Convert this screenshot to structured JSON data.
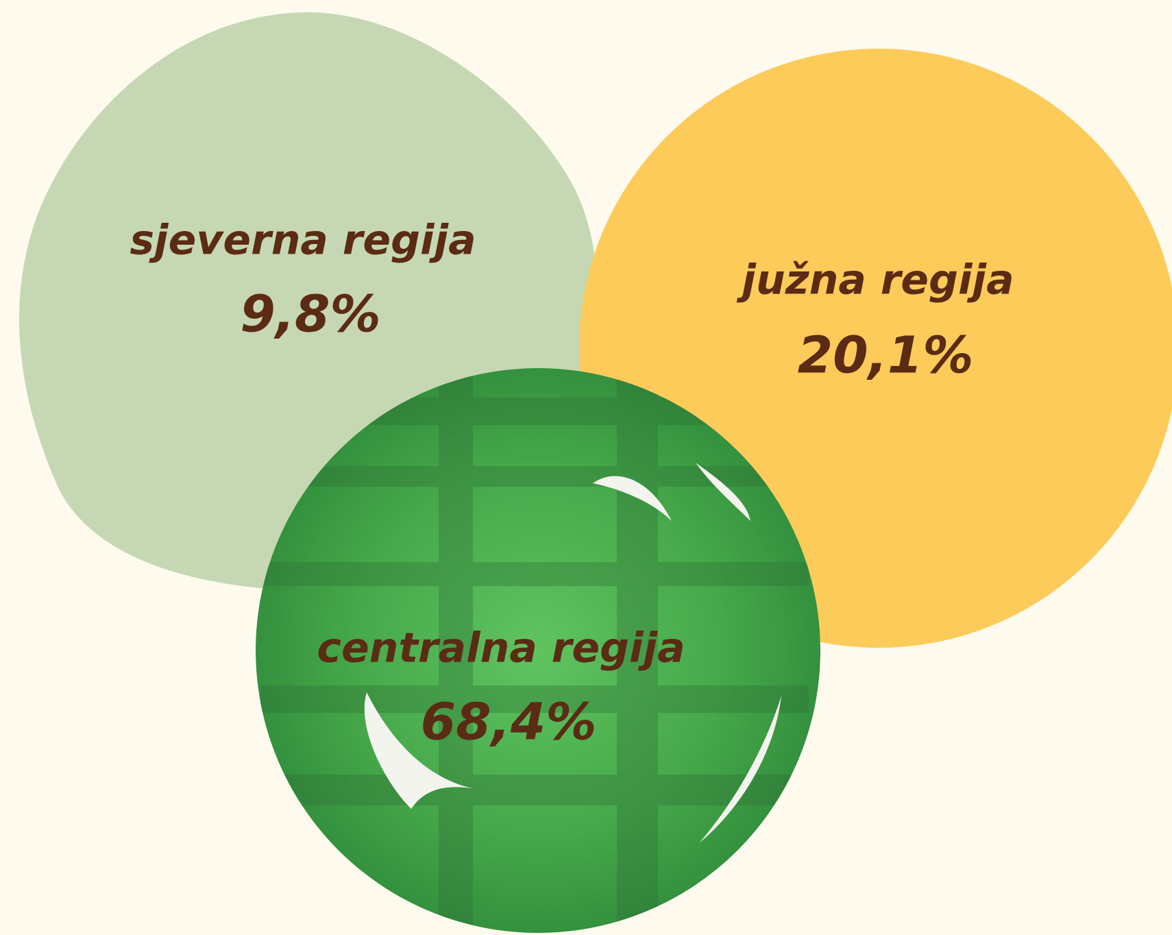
{
  "regions": [
    {
      "name": "sjeverna regija",
      "share": "9,8%"
    },
    {
      "name": "južna regija",
      "share": "20,1%"
    },
    {
      "name": "centralna regija",
      "share": "68,4%"
    }
  ]
}
